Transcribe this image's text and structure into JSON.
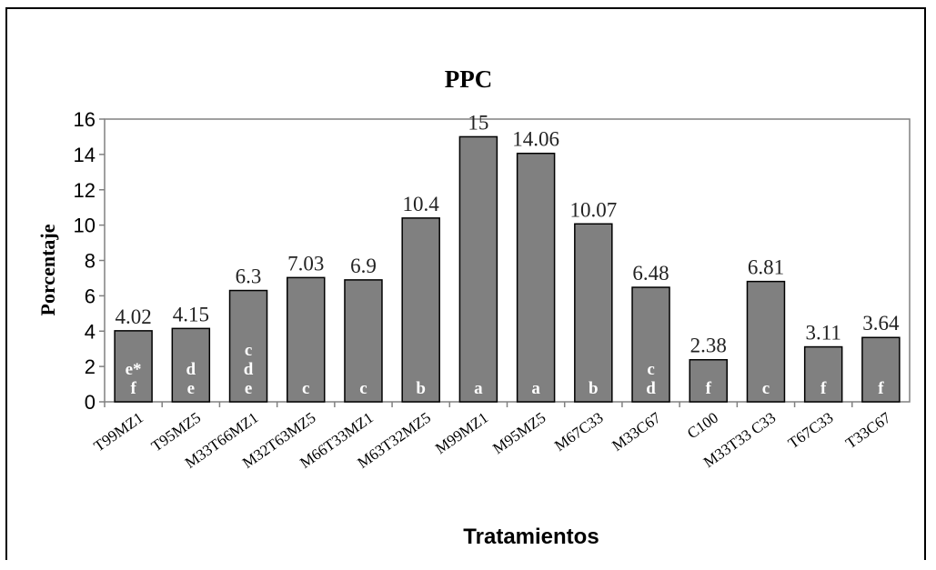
{
  "chart_data": {
    "type": "bar",
    "title": "PPC",
    "xlabel": "Tratamientos",
    "ylabel": "Porcentaje",
    "ylim": [
      0,
      16
    ],
    "yticks": [
      "0",
      "2",
      "4",
      "6",
      "8",
      "10",
      "12",
      "14",
      "16"
    ],
    "categories": [
      "T99MZ1",
      "T95MZ5",
      "M33T66MZ1",
      "M32T63MZ5",
      "M66T33MZ1",
      "M63T32MZ5",
      "M99MZ1",
      "M95MZ5",
      "M67C33",
      "M33C67",
      "C100",
      "M33T33 C33",
      "T67C33",
      "T33C67"
    ],
    "values": [
      4.02,
      4.15,
      6.3,
      7.03,
      6.9,
      10.4,
      15,
      14.06,
      10.07,
      6.48,
      2.38,
      6.81,
      3.11,
      3.64
    ],
    "value_labels": [
      "4.02",
      "4.15",
      "6.3",
      "7.03",
      "6.9",
      "10.4",
      "15",
      "14.06",
      "10.07",
      "6.48",
      "2.38",
      "6.81",
      "3.11",
      "3.64"
    ],
    "groups": [
      [
        "e*",
        "f"
      ],
      [
        "d",
        "e"
      ],
      [
        "c",
        "d",
        "e"
      ],
      [
        "c"
      ],
      [
        "c"
      ],
      [
        "b"
      ],
      [
        "a"
      ],
      [
        "a"
      ],
      [
        "b"
      ],
      [
        "c",
        "d"
      ],
      [
        "f"
      ],
      [
        "c"
      ],
      [
        "f"
      ],
      [
        "f"
      ]
    ],
    "bar_color": "#808080",
    "grid": false,
    "legend": "none"
  }
}
